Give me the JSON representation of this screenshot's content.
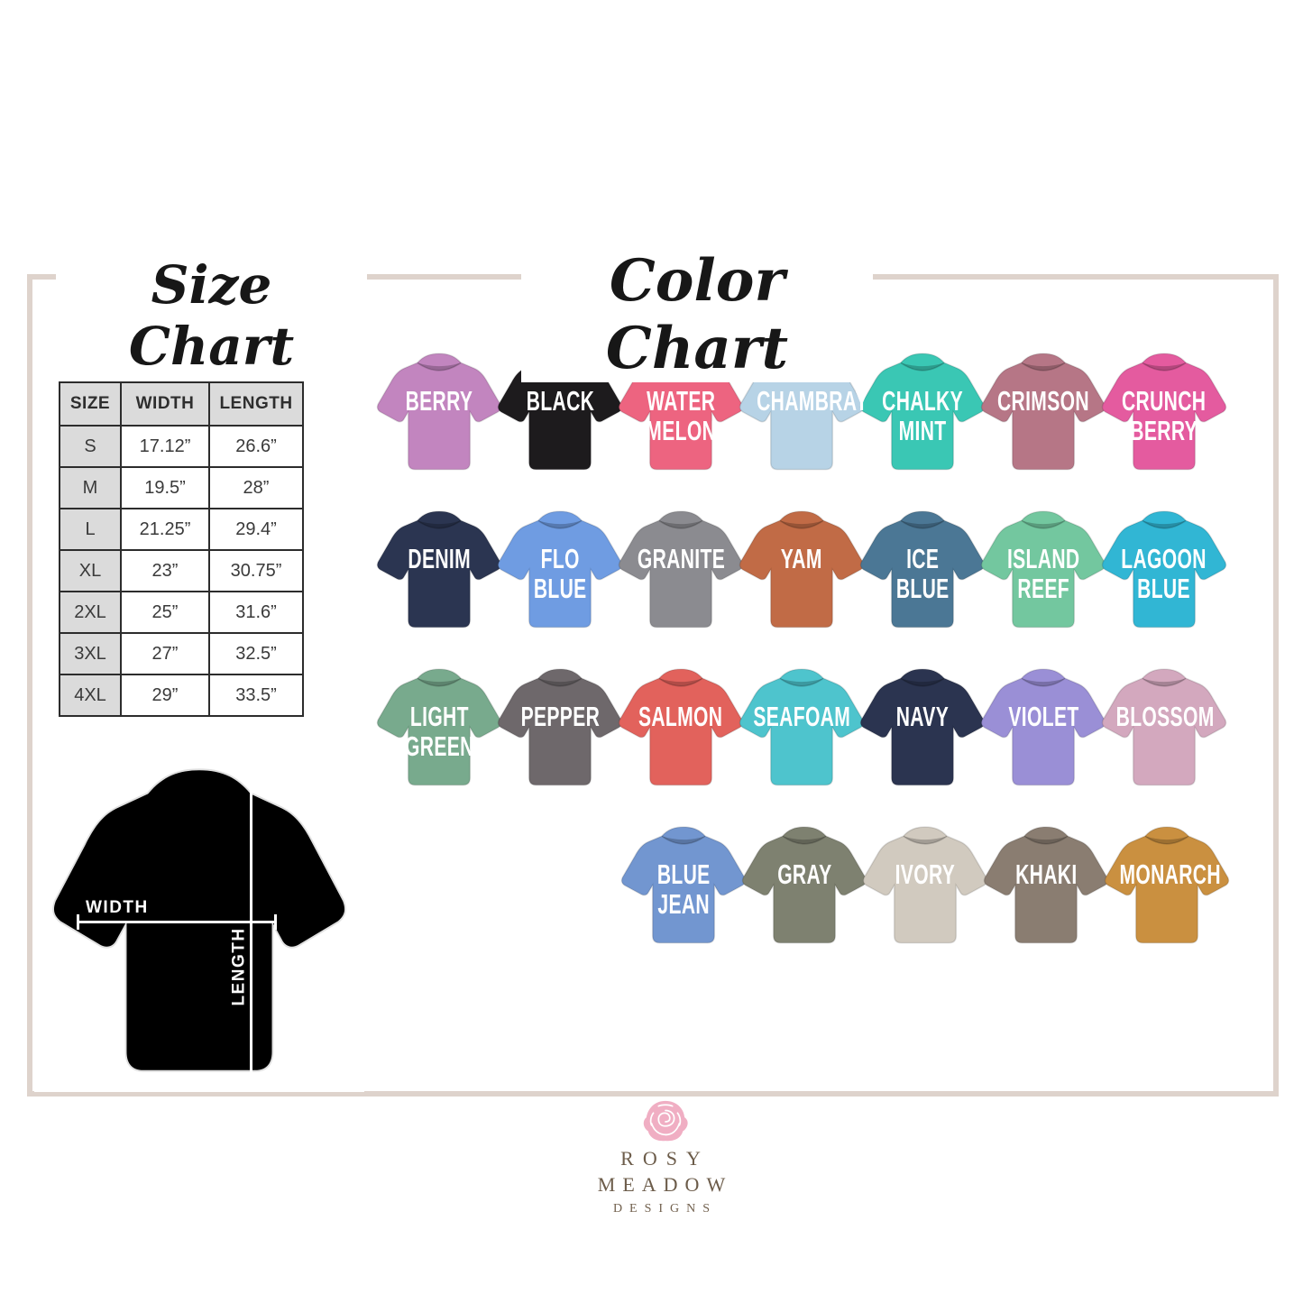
{
  "page": {
    "background": "#ffffff",
    "frame_color": "#ded3cc"
  },
  "size_chart": {
    "title": "Size Chart",
    "table": {
      "headers": [
        "SIZE",
        "WIDTH",
        "LENGTH"
      ],
      "rows": [
        [
          "S",
          "17.12”",
          "26.6”"
        ],
        [
          "M",
          "19.5”",
          "28”"
        ],
        [
          "L",
          "21.25”",
          "29.4”"
        ],
        [
          "XL",
          "23”",
          "30.75”"
        ],
        [
          "2XL",
          "25”",
          "31.6”"
        ],
        [
          "3XL",
          "27”",
          "32.5”"
        ],
        [
          "4XL",
          "29”",
          "33.5”"
        ]
      ]
    },
    "diagram": {
      "width_label": "WIDTH",
      "length_label": "LENGTH",
      "shirt_color": "#90939b"
    }
  },
  "color_chart": {
    "title": "Color Chart",
    "rows": [
      [
        {
          "name": "BERRY",
          "color": "#c285bf"
        },
        {
          "name": "BLACK",
          "color": "#1d1b1d"
        },
        {
          "name": "WATER\nMELON",
          "color": "#ed6480"
        },
        {
          "name": "CHAMBRAY",
          "color": "#b7d3e6"
        },
        {
          "name": "CHALKY\nMINT",
          "color": "#3ac7b4"
        },
        {
          "name": "CRIMSON",
          "color": "#b67686"
        },
        {
          "name": "CRUNCH\nBERRY",
          "color": "#e45b9f"
        }
      ],
      [
        {
          "name": "DENIM",
          "color": "#2b3551"
        },
        {
          "name": "FLO\nBLUE",
          "color": "#6f9ce2"
        },
        {
          "name": "GRANITE",
          "color": "#8b8b90"
        },
        {
          "name": "YAM",
          "color": "#c16b46"
        },
        {
          "name": "ICE\nBLUE",
          "color": "#4b7795"
        },
        {
          "name": "ISLAND\nREEF",
          "color": "#73c79f"
        },
        {
          "name": "LAGOON\nBLUE",
          "color": "#31b6d4"
        }
      ],
      [
        {
          "name": "LIGHT\nGREEN",
          "color": "#78aa8d"
        },
        {
          "name": "PEPPER",
          "color": "#6e686b"
        },
        {
          "name": "SALMON",
          "color": "#e2625c"
        },
        {
          "name": "SEAFOAM",
          "color": "#4ec4cd"
        },
        {
          "name": "NAVY",
          "color": "#2b3450"
        },
        {
          "name": "VIOLET",
          "color": "#9a8fd6"
        },
        {
          "name": "BLOSSOM",
          "color": "#d3a8be"
        }
      ],
      [
        {
          "name": "BLUE\nJEAN",
          "color": "#7296d0"
        },
        {
          "name": "GRAY",
          "color": "#7e8170"
        },
        {
          "name": "IVORY",
          "color": "#d1cabf"
        },
        {
          "name": "KHAKI",
          "color": "#8a7d71"
        },
        {
          "name": "MONARCH",
          "color": "#ca9040"
        }
      ]
    ]
  },
  "logo": {
    "line1": "ROSY",
    "line2": "MEADOW",
    "line3": "DESIGNS",
    "rose_color": "#f0aec3"
  }
}
